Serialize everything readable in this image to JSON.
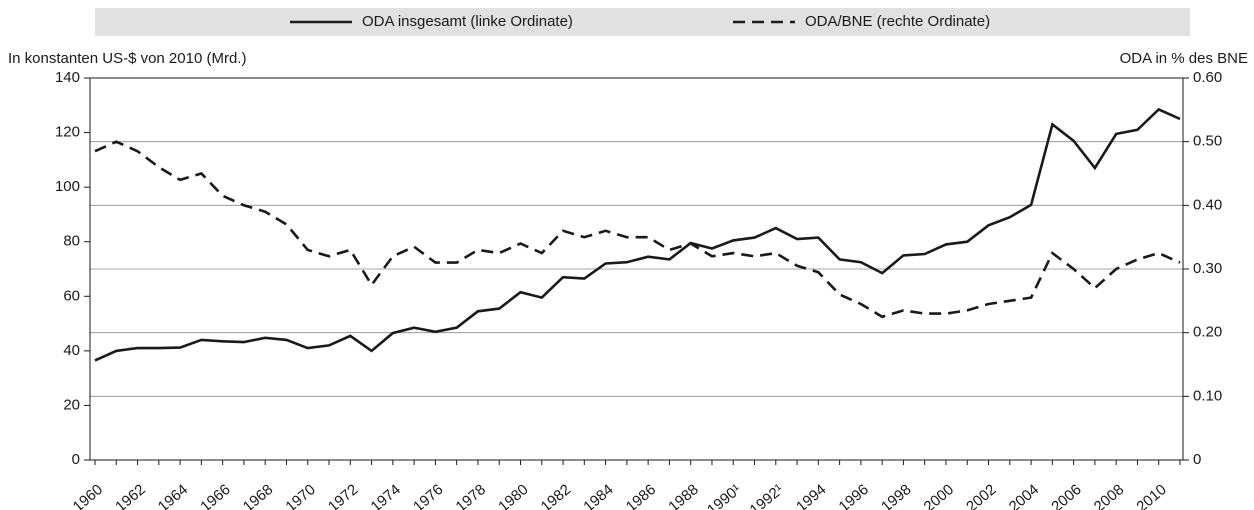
{
  "chart_data": {
    "type": "line",
    "y_label": "In konstanten US-$ von 2010 (Mrd.)",
    "y2_label": "ODA in % des BNE",
    "legend": "top",
    "categories": [
      "1960",
      null,
      "1962",
      null,
      "1964",
      null,
      "1966",
      null,
      "1968",
      null,
      "1970",
      null,
      "1972",
      null,
      "1974",
      null,
      "1976",
      null,
      "1978",
      null,
      "1980",
      null,
      "1982",
      null,
      "1984",
      null,
      "1986",
      null,
      "1988",
      null,
      "1990¹",
      null,
      "1992¹",
      null,
      "1994",
      null,
      "1996",
      null,
      "1998",
      null,
      "2000",
      null,
      "2002",
      null,
      "2004",
      null,
      "2006",
      null,
      "2008",
      null,
      "2010",
      null
    ],
    "series": [
      {
        "name": "ODA insgesamt (linke Ordinate)",
        "color": "#1a1a1a",
        "dash": "solid",
        "axis": "y",
        "values": [
          36.5,
          40,
          41,
          41,
          41.2,
          44,
          43.5,
          43.2,
          44.8,
          44,
          41,
          42,
          45.5,
          40,
          46.5,
          48.5,
          47,
          48.5,
          54.5,
          55.5,
          61.5,
          59.5,
          67,
          66.5,
          72,
          72.5,
          74.5,
          73.5,
          79.5,
          77.5,
          80.5,
          81.5,
          85,
          81,
          81.5,
          73.5,
          72.5,
          68.5,
          75,
          75.5,
          79,
          80,
          86,
          89,
          93.5,
          123,
          117,
          107,
          119.5,
          121,
          128.5,
          125
        ]
      },
      {
        "name": "ODA/BNE (rechte Ordinate)",
        "color": "#1a1a1a",
        "dash": "dashed",
        "axis": "y2",
        "values": [
          0.485,
          0.5,
          0.485,
          0.46,
          0.44,
          0.45,
          0.415,
          0.4,
          0.39,
          0.37,
          0.33,
          0.32,
          0.33,
          0.275,
          0.32,
          0.335,
          0.31,
          0.31,
          0.33,
          0.325,
          0.34,
          0.325,
          0.36,
          0.35,
          0.36,
          0.35,
          0.35,
          0.33,
          0.34,
          0.32,
          0.325,
          0.32,
          0.325,
          0.305,
          0.295,
          0.26,
          0.245,
          0.225,
          0.235,
          0.23,
          0.23,
          0.235,
          0.245,
          0.25,
          0.255,
          0.325,
          0.3,
          0.27,
          0.3,
          0.315,
          0.325,
          0.31
        ]
      }
    ],
    "ylim": [
      0,
      140
    ],
    "yticks": [
      0,
      20,
      40,
      60,
      80,
      100,
      120,
      140
    ],
    "y2lim": [
      0,
      0.6
    ],
    "y2ticks": [
      0,
      {
        "value": 0.1,
        "label": "0.10"
      },
      {
        "value": 0.2,
        "label": "0.20"
      },
      {
        "value": 0.3,
        "label": "0.30"
      },
      {
        "value": 0.4,
        "label": "0.40"
      },
      {
        "value": 0.5,
        "label": "0.50"
      },
      {
        "value": 0.6,
        "label": "0.60"
      }
    ],
    "grid": "y2"
  }
}
